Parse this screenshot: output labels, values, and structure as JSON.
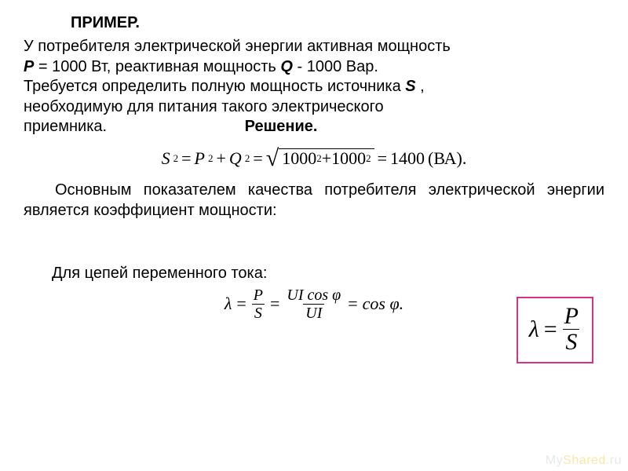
{
  "title": "ПРИМЕР.",
  "problem": {
    "line1": "У потребителя электрической энергии активная мощность",
    "line2_pre": "",
    "P_sym": "P",
    "P_eq": " = 1000 Вт, реактивная мощность ",
    "Q_sym": "Q",
    "Q_eq": "  - 1000 Вар.",
    "line3": "Требуется определить полную мощность источника ",
    "S_sym": "S",
    "line3_post": " ,",
    "line4": "необходимую для питания такого электрического",
    "line5": "приемника.",
    "solution_label": "Решение."
  },
  "equation1": {
    "lhs_base": "S",
    "lhs_exp": "2",
    "eq1": "=",
    "rhs1_base1": "P",
    "rhs1_exp1": "2",
    "plus1": "+",
    "rhs1_base2": "Q",
    "rhs1_exp2": "2",
    "eq2": "=",
    "rad_a": "1000",
    "rad_a_exp": "2",
    "rad_plus": "+",
    "rad_b": "1000",
    "rad_b_exp": "2",
    "eq3": "=",
    "result": "1400",
    "unit": " (ВА)."
  },
  "paragraph2": "Основным показателем качества потребителя электрической энергии является коэффициент мощности:",
  "lambda_box": {
    "border_color": "#d63384",
    "lambda": "λ",
    "eq": "=",
    "num": "P",
    "den": "S"
  },
  "ac_label": "Для цепей переменного тока:",
  "equation2": {
    "lambda": "λ",
    "eq1": "=",
    "f1_num": "P",
    "f1_den": "S",
    "eq2": "=",
    "f2_num": "UI cos φ",
    "f2_den": "UI",
    "eq3": "=",
    "rhs": "cos φ."
  },
  "watermark": {
    "a": "Мy",
    "b": "Shared",
    "c": ".ru"
  }
}
